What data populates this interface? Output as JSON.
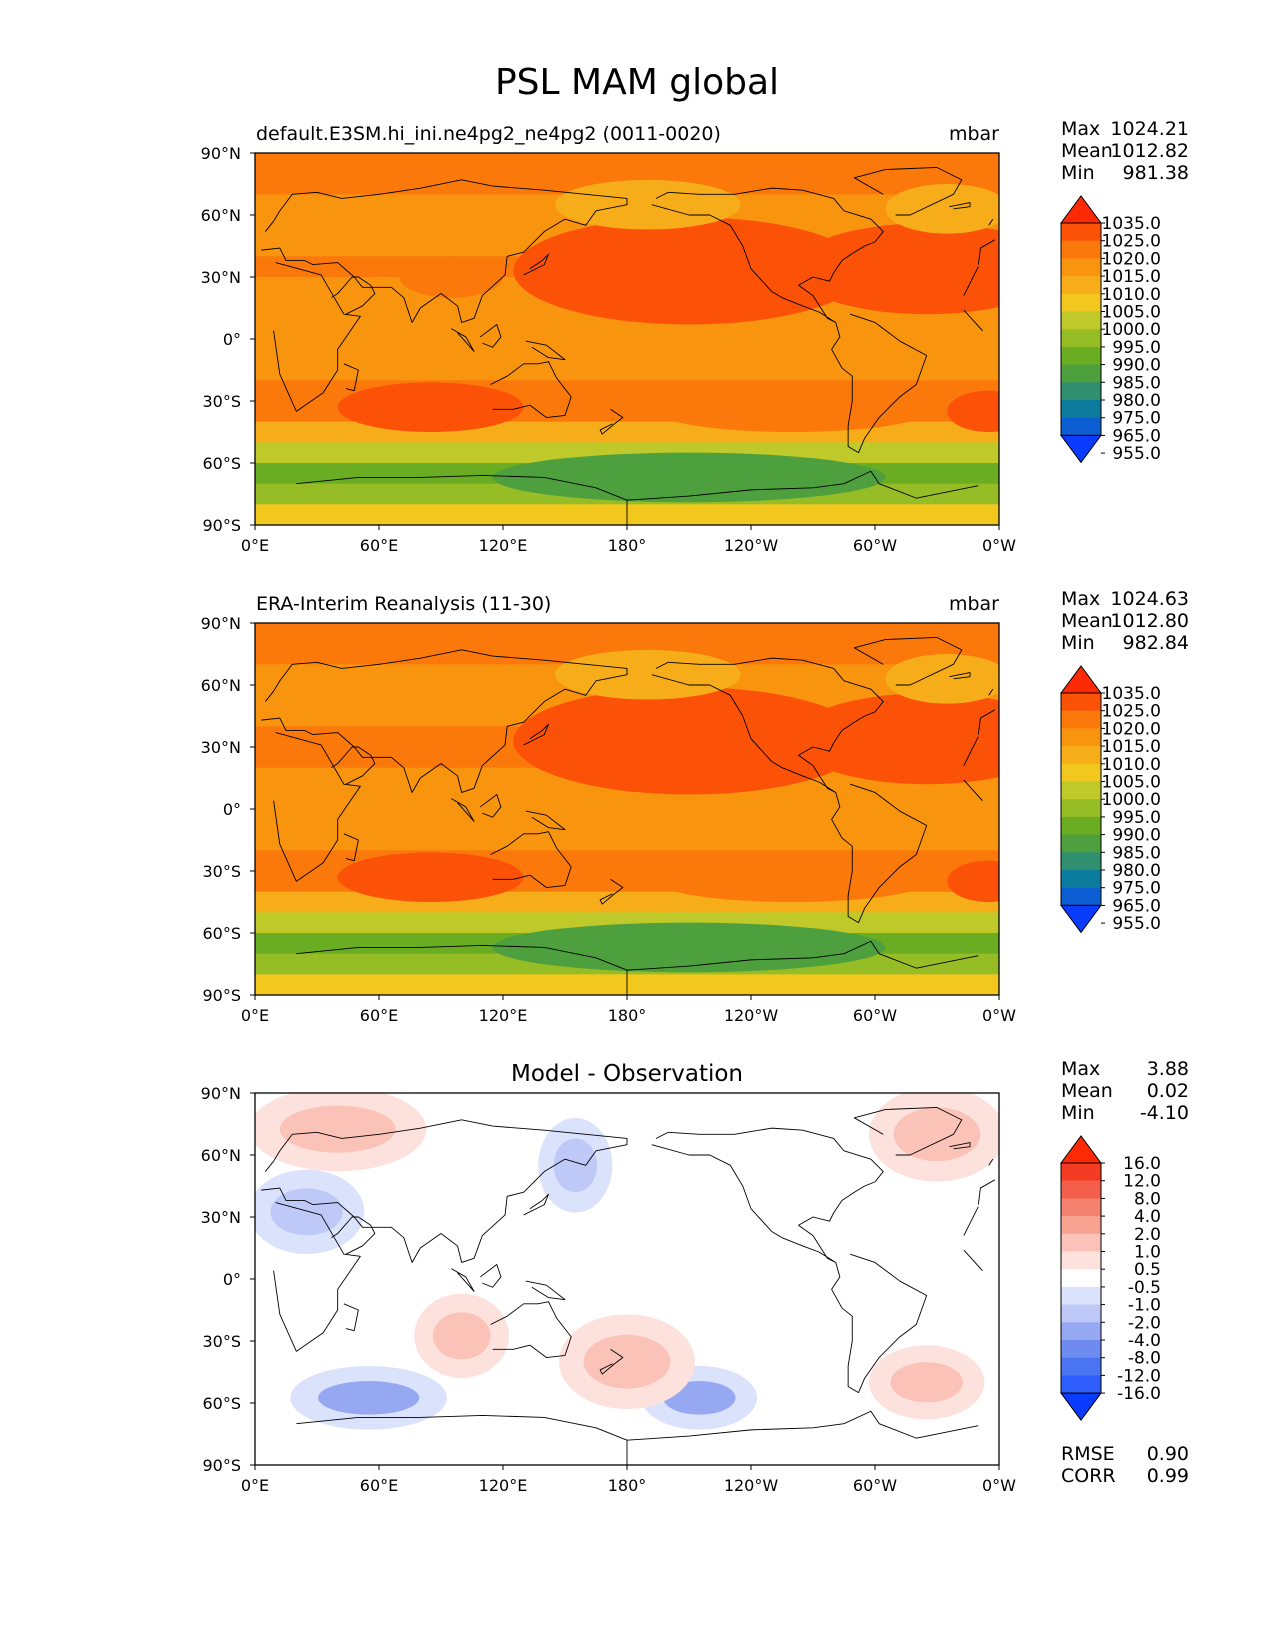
{
  "title": "PSL MAM global",
  "colors": {
    "abs_levels": [
      "#0a3cff",
      "#0b5fd3",
      "#0b7c9e",
      "#2f8f6e",
      "#4e9f3d",
      "#6aac22",
      "#96bd26",
      "#bfc92a",
      "#f2c81f",
      "#f7ad19",
      "#f9940f",
      "#fb780b",
      "#fc5208",
      "#fe2a05"
    ],
    "diff_levels": [
      "#0a3cff",
      "#2f5eff",
      "#4b74f2",
      "#6e8cf0",
      "#97a8f3",
      "#bfc9f8",
      "#dbe2fb",
      "#ffffff",
      "#fde1dc",
      "#fbc2b8",
      "#f8a292",
      "#f5826e",
      "#f35f4b",
      "#f43b24",
      "#fe2a05"
    ],
    "land_outline": "#000000"
  },
  "axes": {
    "x_ticks": [
      "0°E",
      "60°E",
      "120°E",
      "180°",
      "120°W",
      "60°W",
      "0°W"
    ],
    "y_ticks": [
      "90°N",
      "60°N",
      "30°N",
      "0°",
      "30°S",
      "60°S",
      "90°S"
    ]
  },
  "panels": [
    {
      "left_title": "default.E3SM.hi_ini.ne4pg2_ne4pg2 (0011-0020)",
      "center_title": "",
      "right_title": "mbar",
      "stats": {
        "labels": [
          "Max",
          "Mean",
          "Min"
        ],
        "values": [
          "1024.21",
          "1012.82",
          "981.38"
        ]
      },
      "colorbar_labels": [
        "1035.0",
        "1025.0",
        "1020.0",
        "1015.0",
        "1010.0",
        "1005.0",
        "1000.0",
        "995.0",
        "990.0",
        "985.0",
        "980.0",
        "975.0",
        "965.0",
        "955.0"
      ],
      "extra_stats": null
    },
    {
      "left_title": "ERA-Interim Reanalysis (11-30)",
      "center_title": "",
      "right_title": "mbar",
      "stats": {
        "labels": [
          "Max",
          "Mean",
          "Min"
        ],
        "values": [
          "1024.63",
          "1012.80",
          "982.84"
        ]
      },
      "colorbar_labels": [
        "1035.0",
        "1025.0",
        "1020.0",
        "1015.0",
        "1010.0",
        "1005.0",
        "1000.0",
        "995.0",
        "990.0",
        "985.0",
        "980.0",
        "975.0",
        "965.0",
        "955.0"
      ],
      "extra_stats": null
    },
    {
      "left_title": "",
      "center_title": "Model - Observation",
      "right_title": "",
      "stats": {
        "labels": [
          "Max",
          "Mean",
          "Min"
        ],
        "values": [
          "3.88",
          "0.02",
          "-4.10"
        ]
      },
      "colorbar_labels": [
        "16.0",
        "12.0",
        "8.0",
        "4.0",
        "2.0",
        "1.0",
        "0.5",
        "-0.5",
        "-1.0",
        "-2.0",
        "-4.0",
        "-8.0",
        "-12.0",
        "-16.0"
      ],
      "extra_stats": {
        "labels": [
          "RMSE",
          "CORR"
        ],
        "values": [
          "0.90",
          "0.99"
        ]
      }
    }
  ],
  "chart_data": [
    {
      "type": "heatmap",
      "title": "default.E3SM.hi_ini.ne4pg2_ne4pg2 (0011-0020)",
      "units": "mbar",
      "lon_range": [
        0,
        360
      ],
      "lat_range": [
        -90,
        90
      ],
      "levels": [
        955,
        965,
        975,
        980,
        985,
        990,
        995,
        1000,
        1005,
        1010,
        1015,
        1020,
        1025,
        1035
      ],
      "stats": {
        "max": 1024.21,
        "mean": 1012.82,
        "min": 981.38
      },
      "zonal_mean_by_lat": [
        {
          "lat": 85,
          "value": 1017
        },
        {
          "lat": 75,
          "value": 1015
        },
        {
          "lat": 65,
          "value": 1012
        },
        {
          "lat": 55,
          "value": 1011
        },
        {
          "lat": 45,
          "value": 1014
        },
        {
          "lat": 35,
          "value": 1016
        },
        {
          "lat": 25,
          "value": 1014
        },
        {
          "lat": 15,
          "value": 1012
        },
        {
          "lat": 5,
          "value": 1011
        },
        {
          "lat": -5,
          "value": 1011
        },
        {
          "lat": -15,
          "value": 1013
        },
        {
          "lat": -25,
          "value": 1016
        },
        {
          "lat": -35,
          "value": 1016
        },
        {
          "lat": -45,
          "value": 1008
        },
        {
          "lat": -55,
          "value": 995
        },
        {
          "lat": -65,
          "value": 987
        },
        {
          "lat": -75,
          "value": 994
        },
        {
          "lat": -85,
          "value": 1003
        }
      ]
    },
    {
      "type": "heatmap",
      "title": "ERA-Interim Reanalysis (11-30)",
      "units": "mbar",
      "lon_range": [
        0,
        360
      ],
      "lat_range": [
        -90,
        90
      ],
      "levels": [
        955,
        965,
        975,
        980,
        985,
        990,
        995,
        1000,
        1005,
        1010,
        1015,
        1020,
        1025,
        1035
      ],
      "stats": {
        "max": 1024.63,
        "mean": 1012.8,
        "min": 982.84
      },
      "zonal_mean_by_lat": [
        {
          "lat": 85,
          "value": 1018
        },
        {
          "lat": 75,
          "value": 1015
        },
        {
          "lat": 65,
          "value": 1012
        },
        {
          "lat": 55,
          "value": 1012
        },
        {
          "lat": 45,
          "value": 1014
        },
        {
          "lat": 35,
          "value": 1016
        },
        {
          "lat": 25,
          "value": 1015
        },
        {
          "lat": 15,
          "value": 1012
        },
        {
          "lat": 5,
          "value": 1011
        },
        {
          "lat": -5,
          "value": 1011
        },
        {
          "lat": -15,
          "value": 1013
        },
        {
          "lat": -25,
          "value": 1016
        },
        {
          "lat": -35,
          "value": 1016
        },
        {
          "lat": -45,
          "value": 1008
        },
        {
          "lat": -55,
          "value": 996
        },
        {
          "lat": -65,
          "value": 988
        },
        {
          "lat": -75,
          "value": 994
        },
        {
          "lat": -85,
          "value": 1004
        }
      ]
    },
    {
      "type": "heatmap",
      "title": "Model - Observation",
      "units": "",
      "lon_range": [
        0,
        360
      ],
      "lat_range": [
        -90,
        90
      ],
      "levels": [
        -16,
        -12,
        -8,
        -4,
        -2,
        -1,
        -0.5,
        0.5,
        1,
        2,
        4,
        8,
        12,
        16
      ],
      "stats": {
        "max": 3.88,
        "mean": 0.02,
        "min": -4.1,
        "rmse": 0.9,
        "corr": 0.99
      },
      "anomaly_regions": [
        {
          "lon": [
            0,
            80
          ],
          "lat": [
            55,
            90
          ],
          "value": 1.5
        },
        {
          "lon": [
            300,
            360
          ],
          "lat": [
            50,
            90
          ],
          "value": 1.5
        },
        {
          "lon": [
            0,
            50
          ],
          "lat": [
            15,
            50
          ],
          "value": -1.5
        },
        {
          "lon": [
            140,
            170
          ],
          "lat": [
            35,
            75
          ],
          "value": -1.5
        },
        {
          "lon": [
            80,
            120
          ],
          "lat": [
            -45,
            -10
          ],
          "value": 1.2
        },
        {
          "lon": [
            20,
            90
          ],
          "lat": [
            -70,
            -45
          ],
          "value": -2.5
        },
        {
          "lon": [
            190,
            240
          ],
          "lat": [
            -70,
            -45
          ],
          "value": -2.5
        },
        {
          "lon": [
            150,
            210
          ],
          "lat": [
            -60,
            -20
          ],
          "value": 1.5
        },
        {
          "lon": [
            300,
            350
          ],
          "lat": [
            -65,
            -35
          ],
          "value": 1.2
        }
      ]
    }
  ]
}
